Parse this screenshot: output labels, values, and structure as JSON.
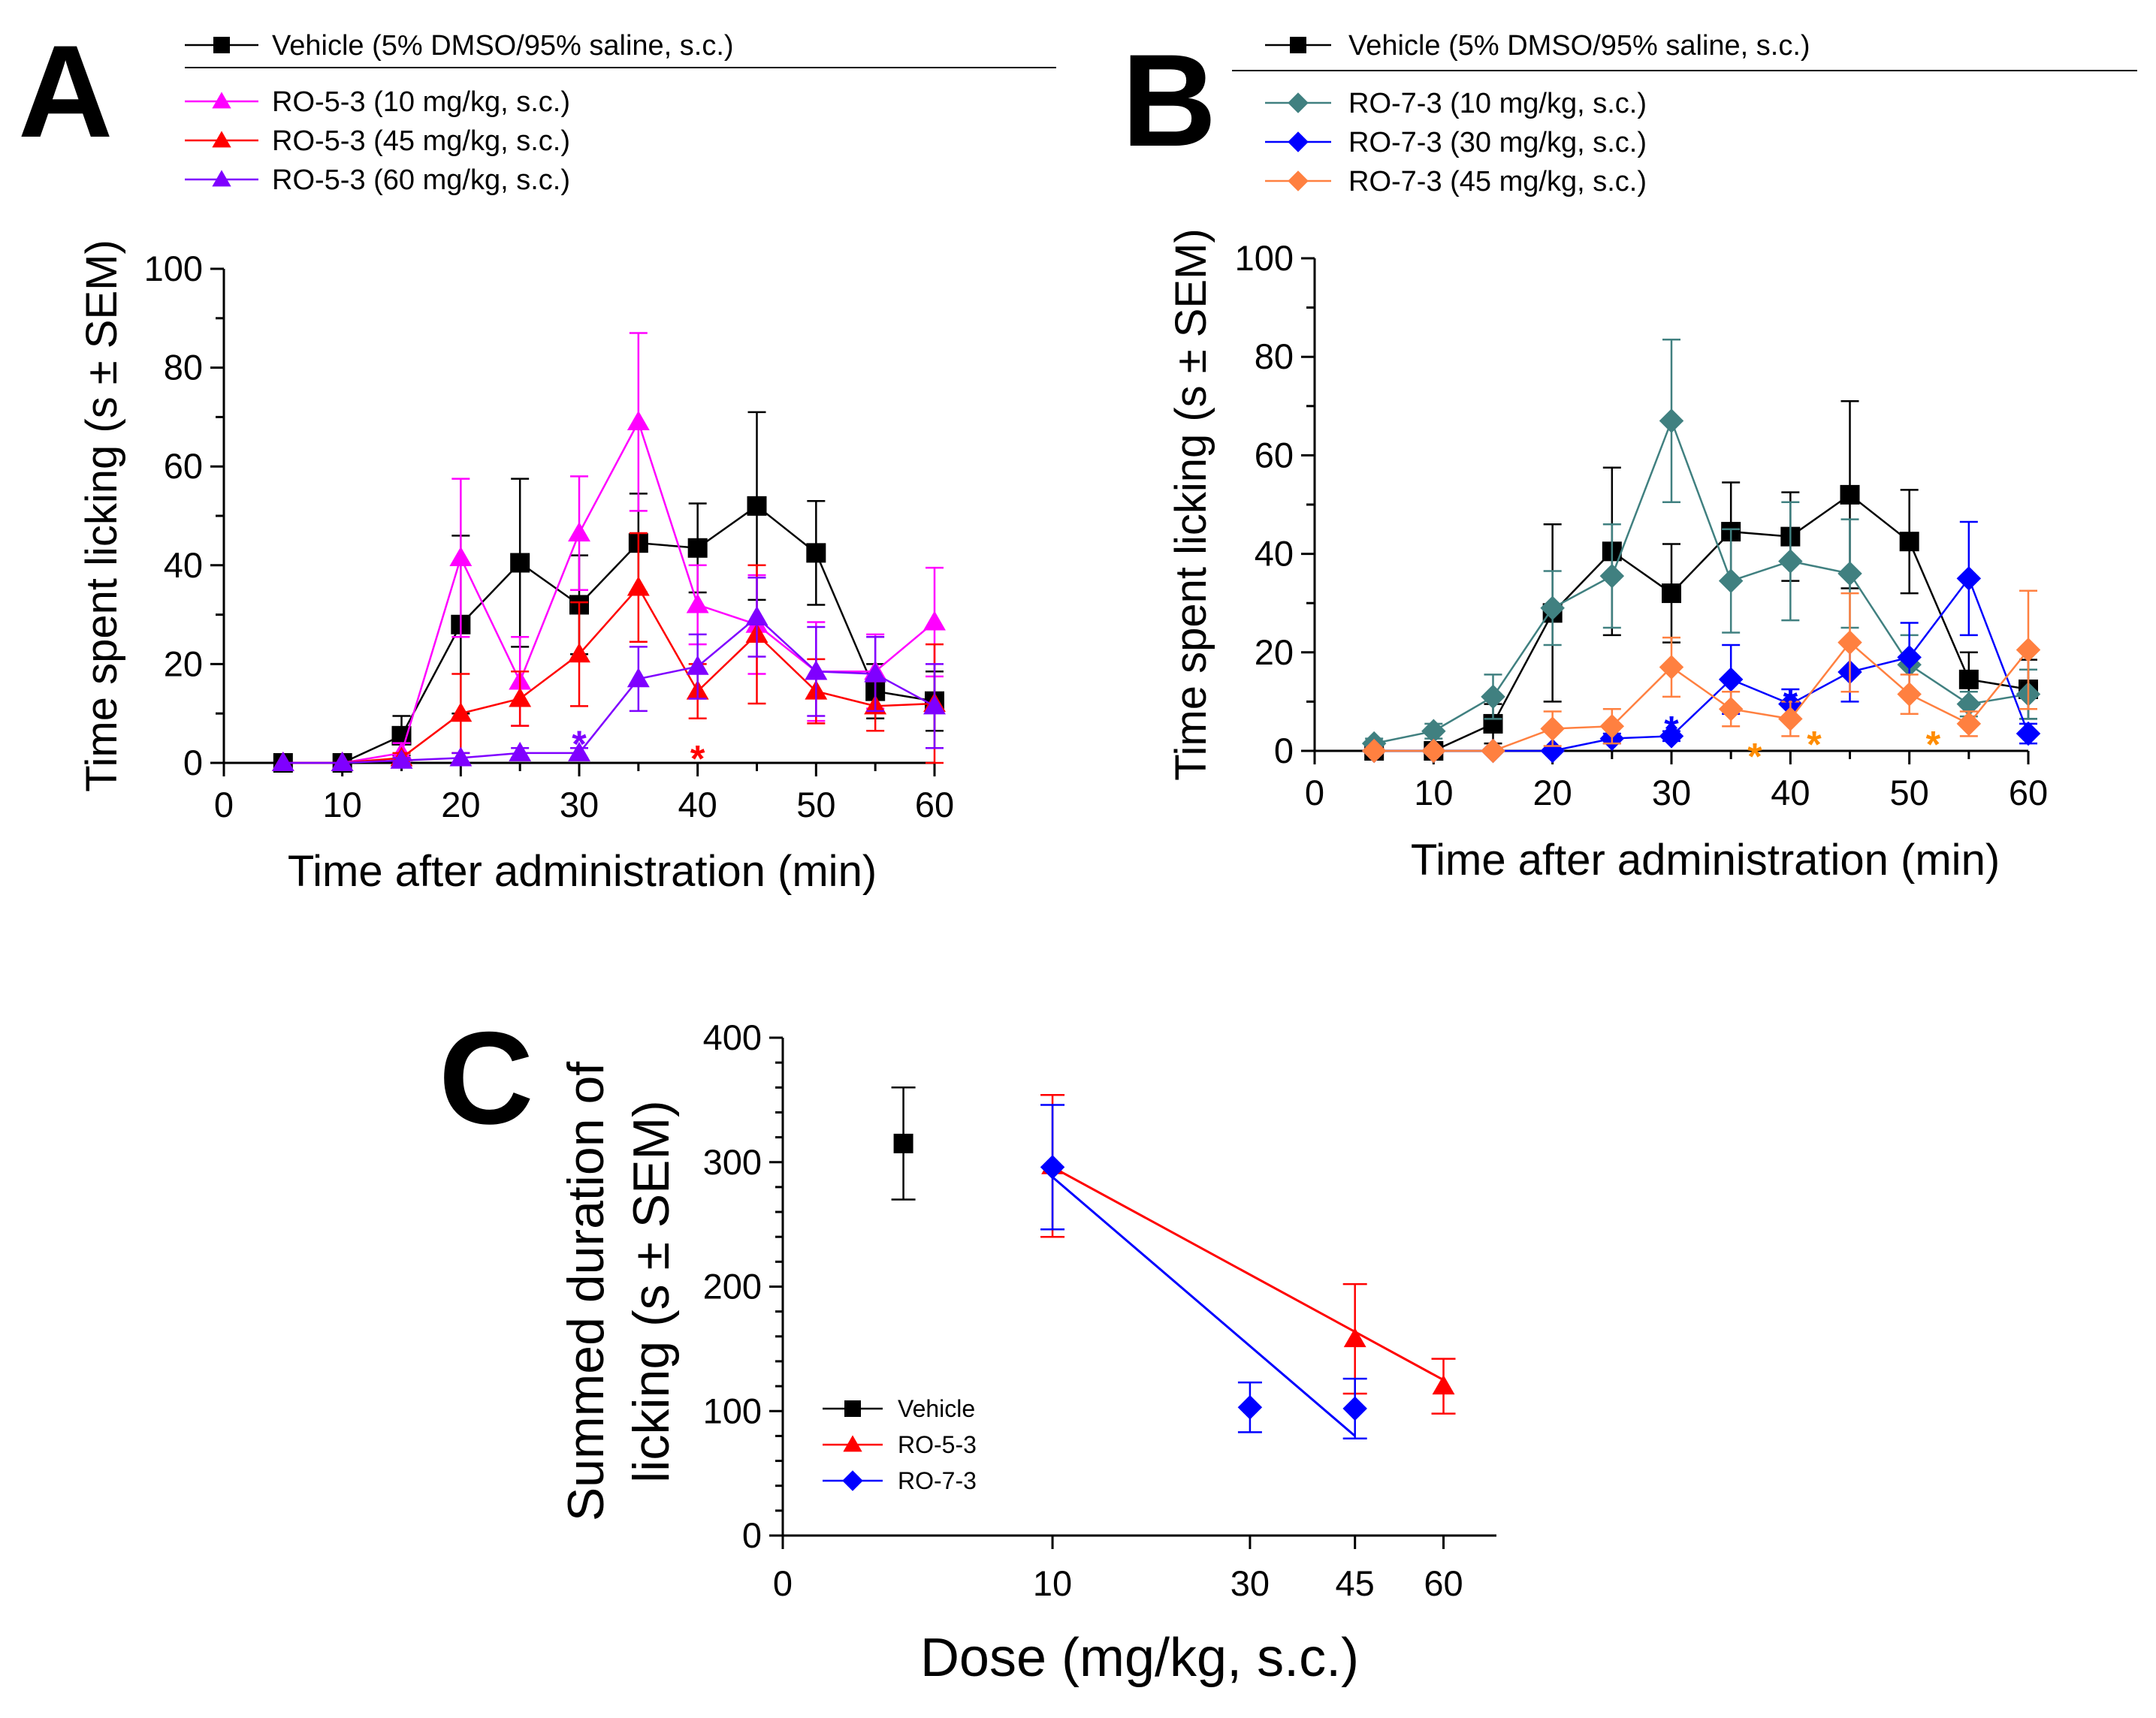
{
  "chart_data": [
    {
      "panel": "A",
      "type": "line",
      "title": "",
      "xlabel": "Time after administration (min)",
      "ylabel": "Time spent licking (s ± SEM)",
      "xlim": [
        0,
        60
      ],
      "ylim": [
        0,
        100
      ],
      "xticks": [
        0,
        10,
        20,
        30,
        40,
        50,
        60
      ],
      "yticks": [
        0,
        20,
        40,
        60,
        80,
        100
      ],
      "legend_position": "top",
      "legend_header": {
        "name": "Vehicle (5% DMSO/95% saline, s.c.)",
        "color": "#000000",
        "marker": "square"
      },
      "series": [
        {
          "name": "Vehicle (5% DMSO/95% saline, s.c.)",
          "color": "#000000",
          "marker": "square",
          "x": [
            5,
            10,
            15,
            20,
            25,
            30,
            35,
            40,
            45,
            50,
            55,
            60
          ],
          "y": [
            0,
            0,
            5.5,
            28,
            40.5,
            32,
            44.5,
            43.5,
            52,
            42.5,
            14.5,
            12.5
          ],
          "err": [
            0,
            0,
            4,
            18,
            17,
            10,
            10,
            9,
            19,
            10.5,
            5.5,
            6
          ]
        },
        {
          "name": "RO-5-3 (10 mg/kg, s.c.)",
          "color": "#ff00ff",
          "marker": "triangle",
          "x": [
            5,
            10,
            15,
            20,
            25,
            30,
            35,
            40,
            45,
            50,
            55,
            60
          ],
          "y": [
            0,
            0,
            2,
            41.5,
            16.5,
            46.5,
            69,
            32,
            28,
            18.5,
            18.5,
            28.5
          ],
          "err": [
            0,
            0,
            2,
            16,
            9,
            11.5,
            18,
            8,
            10,
            10,
            7.5,
            11
          ]
        },
        {
          "name": "RO-5-3 (45 mg/kg, s.c.)",
          "color": "#ff0000",
          "marker": "triangle",
          "x": [
            5,
            10,
            15,
            20,
            25,
            30,
            35,
            40,
            45,
            50,
            55,
            60
          ],
          "y": [
            0,
            0,
            1,
            10,
            13,
            22,
            35.5,
            14.5,
            26,
            14.5,
            11.5,
            12
          ],
          "err": [
            0,
            0,
            1,
            8,
            5.5,
            10.5,
            11,
            5.5,
            14,
            6.5,
            5,
            12
          ]
        },
        {
          "name": "RO-5-3 (60 mg/kg, s.c.)",
          "color": "#7f00ff",
          "marker": "triangle",
          "x": [
            5,
            10,
            15,
            20,
            25,
            30,
            35,
            40,
            45,
            50,
            55,
            60
          ],
          "y": [
            0,
            0,
            0.5,
            1,
            2,
            2,
            17,
            19.5,
            29.5,
            18.5,
            18,
            11.5
          ],
          "err": [
            0,
            0,
            0.5,
            1,
            1,
            1,
            6.5,
            6.5,
            8,
            9,
            7.5,
            8.5
          ]
        }
      ],
      "annotations": [
        {
          "text": "*",
          "x": 30,
          "y": 5.5,
          "color": "#7f00ff"
        },
        {
          "text": "*",
          "x": 40,
          "y": 2.5,
          "color": "#ff0000"
        }
      ]
    },
    {
      "panel": "B",
      "type": "line",
      "title": "",
      "xlabel": "Time after administration (min)",
      "ylabel": "Time spent licking (s ± SEM)",
      "xlim": [
        0,
        60
      ],
      "ylim": [
        0,
        100
      ],
      "xticks": [
        0,
        10,
        20,
        30,
        40,
        50,
        60
      ],
      "yticks": [
        0,
        20,
        40,
        60,
        80,
        100
      ],
      "legend_position": "top",
      "legend_header": {
        "name": "Vehicle (5% DMSO/95% saline, s.c.)",
        "color": "#000000",
        "marker": "square"
      },
      "series": [
        {
          "name": "Vehicle (5% DMSO/95% saline, s.c.)",
          "color": "#000000",
          "marker": "square",
          "x": [
            5,
            10,
            15,
            20,
            25,
            30,
            35,
            40,
            45,
            50,
            55,
            60
          ],
          "y": [
            0,
            0,
            5.5,
            28,
            40.5,
            32,
            44.5,
            43.5,
            52,
            42.5,
            14.5,
            12.5
          ],
          "err": [
            0,
            0,
            4,
            18,
            17,
            10,
            10,
            9,
            19,
            10.5,
            5.5,
            6
          ]
        },
        {
          "name": "RO-7-3 (10 mg/kg, s.c.)",
          "color": "#408080",
          "marker": "diamond",
          "x": [
            5,
            10,
            15,
            20,
            25,
            30,
            35,
            40,
            45,
            50,
            55,
            60
          ],
          "y": [
            1.5,
            4,
            11,
            29,
            35.5,
            67,
            34.5,
            38.5,
            36,
            17.5,
            9.5,
            11.5
          ],
          "err": [
            1,
            1.5,
            4.5,
            7.5,
            10.5,
            16.5,
            10.5,
            12,
            11,
            6,
            2.5,
            5
          ]
        },
        {
          "name": "RO-7-3 (30 mg/kg, s.c.)",
          "color": "#0000ff",
          "marker": "diamond",
          "x": [
            5,
            10,
            15,
            20,
            25,
            30,
            35,
            40,
            45,
            50,
            55,
            60
          ],
          "y": [
            0,
            0,
            0,
            0,
            2.5,
            3,
            14.5,
            9.5,
            16,
            19,
            35,
            3.5
          ],
          "err": [
            0,
            0,
            0,
            0,
            1,
            1,
            7,
            3,
            6,
            7,
            11.5,
            2
          ]
        },
        {
          "name": "RO-7-3 (45 mg/kg, s.c.)",
          "color": "#ff8040",
          "marker": "diamond",
          "x": [
            5,
            10,
            15,
            20,
            25,
            30,
            35,
            40,
            45,
            50,
            55,
            60
          ],
          "y": [
            0,
            0,
            0,
            4.5,
            5,
            17,
            8.5,
            6.5,
            22,
            11.5,
            5.5,
            20.5
          ],
          "err": [
            0,
            0,
            0,
            3.5,
            3.5,
            6,
            3.5,
            3.5,
            10,
            4,
            2.5,
            12
          ]
        }
      ],
      "annotations": [
        {
          "text": "*",
          "x": 30,
          "y": 6,
          "color": "#0000ff"
        },
        {
          "text": "*",
          "x": 40,
          "y": 11.5,
          "color": "#0000ff"
        },
        {
          "text": "*",
          "x": 37,
          "y": 0.5,
          "color": "#ff8c00"
        },
        {
          "text": "*",
          "x": 42,
          "y": 3,
          "color": "#ff8c00"
        },
        {
          "text": "*",
          "x": 52,
          "y": 3,
          "color": "#ff8c00"
        }
      ]
    },
    {
      "panel": "C",
      "type": "scatter",
      "title": "",
      "xlabel": "Dose (mg/kg, s.c.)",
      "ylabel_lines": [
        "Summed duration of",
        "licking (s ± SEM)"
      ],
      "xlim": [
        0,
        70
      ],
      "ylim": [
        0,
        400
      ],
      "xticks": [
        0,
        10,
        30,
        45,
        60
      ],
      "yticks": [
        0,
        100,
        200,
        300,
        400
      ],
      "x_scale": "square-root",
      "legend_position": "bottom-left",
      "series": [
        {
          "name": "Vehicle",
          "color": "#000000",
          "marker": "square",
          "x": [
            2
          ],
          "y": [
            315
          ],
          "err": [
            45
          ]
        },
        {
          "name": "RO-5-3",
          "color": "#ff0000",
          "marker": "triangle",
          "x": [
            10,
            45,
            60
          ],
          "y": [
            297,
            158,
            120
          ],
          "err": [
            57,
            44,
            22
          ],
          "fit": {
            "x": [
              10,
              60
            ],
            "y": [
              296,
              125
            ]
          }
        },
        {
          "name": "RO-7-3",
          "color": "#0000ff",
          "marker": "diamond",
          "x": [
            10,
            30,
            45
          ],
          "y": [
            296,
            103,
            102
          ],
          "err": [
            50,
            20,
            24
          ],
          "fit": {
            "x": [
              10,
              45
            ],
            "y": [
              288,
              80
            ]
          }
        }
      ]
    }
  ]
}
